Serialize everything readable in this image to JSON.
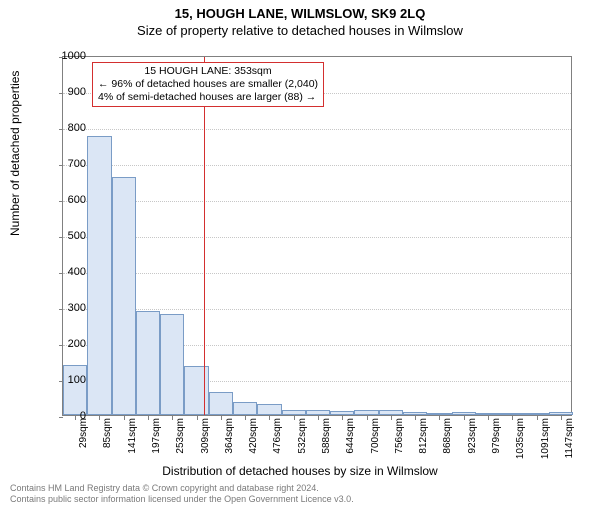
{
  "title_main": "15, HOUGH LANE, WILMSLOW, SK9 2LQ",
  "title_sub": "Size of property relative to detached houses in Wilmslow",
  "chart": {
    "type": "histogram",
    "ylabel": "Number of detached properties",
    "xlabel": "Distribution of detached houses by size in Wilmslow",
    "ylim": [
      0,
      1000
    ],
    "ytick_step": 100,
    "xticks": [
      "29sqm",
      "85sqm",
      "141sqm",
      "197sqm",
      "253sqm",
      "309sqm",
      "364sqm",
      "420sqm",
      "476sqm",
      "532sqm",
      "588sqm",
      "644sqm",
      "700sqm",
      "756sqm",
      "812sqm",
      "868sqm",
      "923sqm",
      "979sqm",
      "1035sqm",
      "1091sqm",
      "1147sqm"
    ],
    "bar_values": [
      140,
      775,
      660,
      290,
      280,
      135,
      65,
      35,
      30,
      15,
      15,
      12,
      15,
      15,
      8,
      5,
      8,
      2,
      5,
      2,
      8
    ],
    "bar_color": "#dbe6f5",
    "bar_border_color": "#7a9cc6",
    "grid_color": "#c7c7c7",
    "axis_color": "#808080",
    "background_color": "#ffffff",
    "bar_width_ratio": 1.0,
    "tick_fontsize": 11,
    "label_fontsize": 12
  },
  "marker": {
    "value_sqm": 353,
    "line_color": "#d32f2f",
    "callout_border": "#d32f2f",
    "callout_lines": [
      "15 HOUGH LANE: 353sqm",
      "← 96% of detached houses are smaller (2,040)",
      "4% of semi-detached houses are larger (88) →"
    ]
  },
  "footer": {
    "line1": "Contains HM Land Registry data © Crown copyright and database right 2024.",
    "line2": "Contains public sector information licensed under the Open Government Licence v3.0."
  }
}
